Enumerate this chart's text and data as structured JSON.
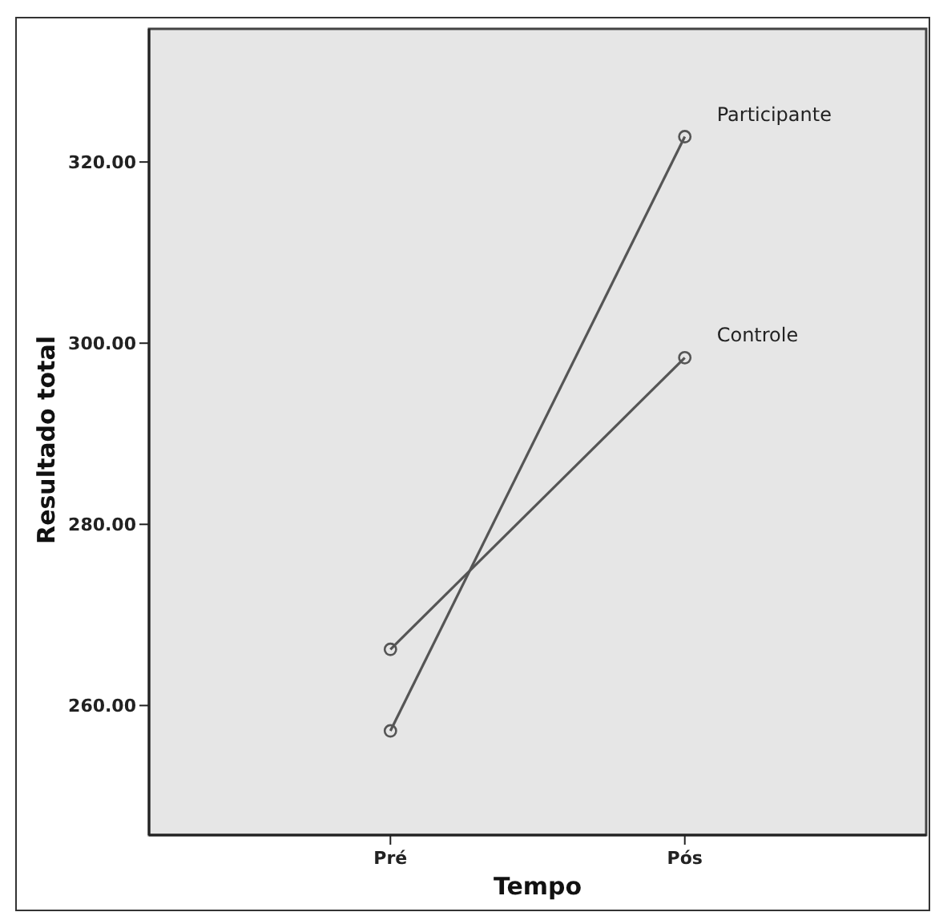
{
  "chart_data": {
    "type": "line",
    "xlabel": "Tempo",
    "ylabel": "Resultado total",
    "categories": [
      "Pré",
      "Pós"
    ],
    "series": [
      {
        "name": "Participante",
        "color": "#555555",
        "values": [
          257.2,
          322.8
        ]
      },
      {
        "name": "Controle",
        "color": "#555555",
        "values": [
          266.2,
          298.4
        ]
      }
    ],
    "ylim": [
      245.7,
      334.7
    ],
    "yticks": [
      {
        "value": 260,
        "label": "260.00"
      },
      {
        "value": 280,
        "label": "280.00"
      },
      {
        "value": 300,
        "label": "300.00"
      },
      {
        "value": 320,
        "label": "320.00"
      }
    ],
    "marker": "circle",
    "line_style": "solid",
    "grid": false
  }
}
